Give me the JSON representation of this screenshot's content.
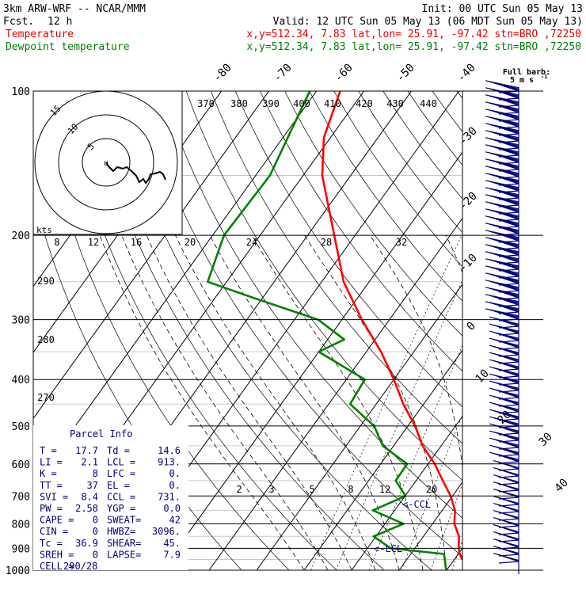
{
  "header": {
    "model": "3km ARW-WRF -- NCAR/MMM",
    "init": "Init: 00 UTC Sun 05 May 13",
    "fcst_label": "Fcst.",
    "fcst_value": "12 h",
    "valid": "Valid: 12 UTC Sun 05 May 13 (06 MDT Sun 05 May 13)",
    "temp_label": "Temperature",
    "temp_info": "x,y=512.34,  7.83   lat,lon= 25.91, -97.42  stn=BRO ,72250",
    "dew_label": "Dewpoint temperature",
    "dew_info": "x,y=512.34,  7.83   lat,lon= 25.91, -97.42  stn=BRO ,72250"
  },
  "colors": {
    "temperature": "#ff0000",
    "dewpoint": "#008000",
    "wind": "#00007a",
    "isotherm": "#000000"
  },
  "barb_legend": {
    "line1": "Full barb:",
    "line2": "5 m s",
    "exp": "-1"
  },
  "hodograph": {
    "rings": [
      "5",
      "10",
      "15"
    ],
    "kts_label": "kts"
  },
  "parcel_info": {
    "title": "Parcel Info",
    "rows": [
      [
        "T  =",
        "17.7",
        "Td =",
        "14.6"
      ],
      [
        "LI =",
        "2.1",
        "LCL =",
        "913."
      ],
      [
        "K  =",
        "8",
        "LFC =",
        "0."
      ],
      [
        "TT =",
        "37",
        "EL  =",
        "0."
      ],
      [
        "SVI =",
        "8.4",
        "CCL =",
        "731."
      ],
      [
        "PW =",
        "2.58",
        "YGP =",
        "0.0"
      ],
      [
        "CAPE =",
        "0",
        "SWEAT=",
        "42"
      ],
      [
        "CIN =",
        "0",
        "HWBZ=",
        "3096."
      ],
      [
        "Tc =",
        "36.9",
        "SHEAR=",
        "45."
      ],
      [
        "SREH =",
        "0",
        "LAPSE=",
        "7.9"
      ],
      [
        "CELL =",
        "290/28",
        "",
        ""
      ]
    ]
  },
  "annotations": {
    "ccl": "<-CCL",
    "lcl": "<-LCL"
  },
  "chart_data": {
    "type": "line",
    "title": "",
    "ylabel": "",
    "y_scale": "log-pressure",
    "pressure_ticks": [
      "100",
      "200",
      "300",
      "400",
      "500",
      "600",
      "700",
      "800",
      "900",
      "1000"
    ],
    "isotherm_labels": [
      "-80",
      "-70",
      "-60",
      "-50",
      "-40",
      "-30",
      "-20",
      "-10",
      "0",
      "10",
      "20",
      "30",
      "40"
    ],
    "theta_labels": [
      "370",
      "380",
      "390",
      "400",
      "410",
      "420",
      "430",
      "440"
    ],
    "theta_labels_low": [
      "290",
      "280",
      "270"
    ],
    "mixing_ratio_labels": [
      "8",
      "12",
      "16",
      "20",
      "24",
      "28",
      "32"
    ],
    "mixing_ratio_labels_low": [
      "2",
      "3",
      "5",
      "8",
      "12",
      "20"
    ],
    "series": [
      {
        "name": "Temperature",
        "color": "#ff0000",
        "points": [
          [
            1000,
            26.3
          ],
          [
            970,
            23.9
          ],
          [
            950,
            21.7
          ],
          [
            925,
            20.3
          ],
          [
            900,
            19.2
          ],
          [
            850,
            17.5
          ],
          [
            800,
            14.6
          ],
          [
            750,
            12.7
          ],
          [
            700,
            9.6
          ],
          [
            650,
            5.6
          ],
          [
            600,
            1.4
          ],
          [
            550,
            -3.9
          ],
          [
            500,
            -8.5
          ],
          [
            450,
            -14.3
          ],
          [
            400,
            -20.0
          ],
          [
            350,
            -26.9
          ],
          [
            300,
            -35.8
          ],
          [
            250,
            -45.4
          ],
          [
            200,
            -54.4
          ],
          [
            150,
            -66.0
          ],
          [
            125,
            -71.4
          ],
          [
            100,
            -75.0
          ]
        ]
      },
      {
        "name": "Dewpoint temperature",
        "color": "#008000",
        "points": [
          [
            1000,
            19.9
          ],
          [
            950,
            18.0
          ],
          [
            925,
            17.0
          ],
          [
            900,
            4.9
          ],
          [
            850,
            -0.5
          ],
          [
            800,
            3.9
          ],
          [
            750,
            -4.6
          ],
          [
            700,
            0.1
          ],
          [
            650,
            -4.3
          ],
          [
            600,
            -4.4
          ],
          [
            550,
            -12.3
          ],
          [
            500,
            -17.1
          ],
          [
            450,
            -25.5
          ],
          [
            400,
            -26.1
          ],
          [
            350,
            -40.0
          ],
          [
            330,
            -36.5
          ],
          [
            300,
            -45.0
          ],
          [
            270,
            -62.0
          ],
          [
            250,
            -74.0
          ],
          [
            200,
            -77.6
          ],
          [
            150,
            -77.0
          ],
          [
            100,
            -81.4
          ]
        ]
      }
    ]
  }
}
